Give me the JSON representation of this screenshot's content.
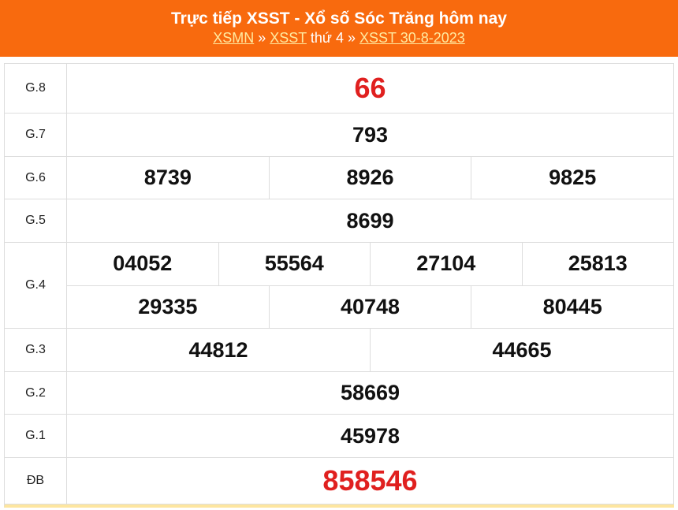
{
  "header": {
    "title": "Trực tiếp XSST - Xổ số Sóc Trăng hôm nay",
    "breadcrumb": {
      "link1": "XSMN",
      "sep1": " » ",
      "link2": "XSST",
      "text": " thứ 4 » ",
      "link3": "XSST 30-8-2023"
    }
  },
  "accent_color": "#f86a0e",
  "prize_color": "#e0201f",
  "results": [
    {
      "label": "G.8",
      "rows": [
        [
          "66"
        ]
      ],
      "red": true,
      "h": 63
    },
    {
      "label": "G.7",
      "rows": [
        [
          "793"
        ]
      ],
      "h": 55
    },
    {
      "label": "G.6",
      "rows": [
        [
          "8739",
          "8926",
          "9825"
        ]
      ],
      "h": 54
    },
    {
      "label": "G.5",
      "rows": [
        [
          "8699"
        ]
      ],
      "h": 55
    },
    {
      "label": "G.4",
      "rows": [
        [
          "04052",
          "55564",
          "27104",
          "25813"
        ],
        [
          "29335",
          "40748",
          "80445"
        ]
      ],
      "h": 109
    },
    {
      "label": "G.3",
      "rows": [
        [
          "44812",
          "44665"
        ]
      ],
      "h": 55
    },
    {
      "label": "G.2",
      "rows": [
        [
          "58669"
        ]
      ],
      "h": 54
    },
    {
      "label": "G.1",
      "rows": [
        [
          "45978"
        ]
      ],
      "h": 55
    },
    {
      "label": "ĐB",
      "rows": [
        [
          "858546"
        ]
      ],
      "red": true,
      "h": 59
    }
  ]
}
